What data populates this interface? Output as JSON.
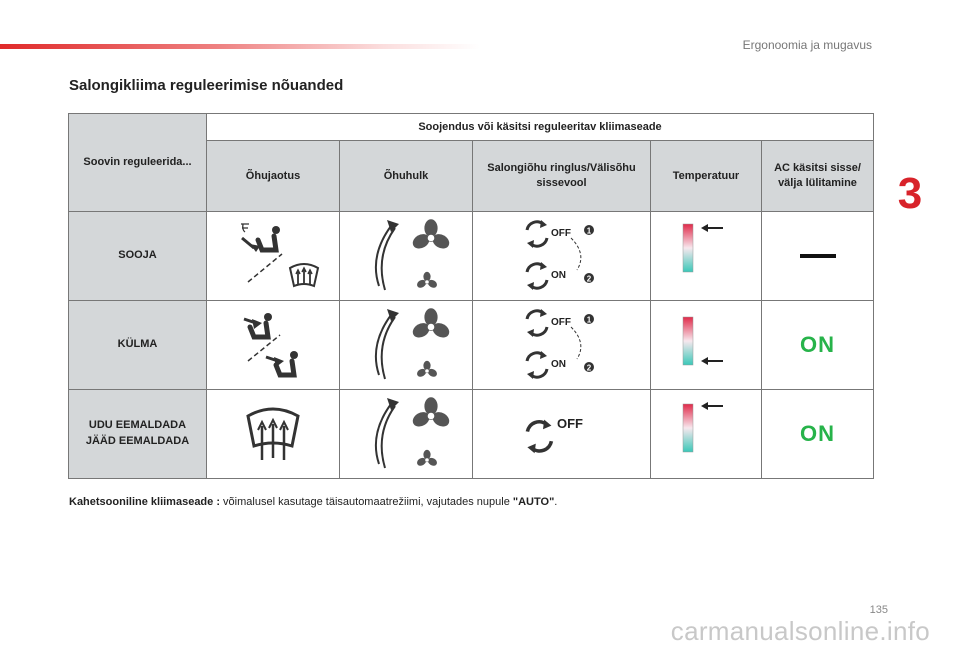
{
  "header": {
    "section": "Ergonoomia ja mugavus",
    "chapter": "3"
  },
  "title": "Salongikliima reguleerimise nõuanded",
  "table": {
    "col0_header": "Soovin reguleerida...",
    "group_header": "Soojendus või käsitsi reguleeritav kliimaseade",
    "columns": [
      "Õhujaotus",
      "Õhuhulk",
      "Salongiõhu ringlus/Välisõhu sissevool",
      "Temperatuur",
      "AC käsitsi sisse/ välja lülitamine"
    ],
    "rows": [
      {
        "label": "SOOJA",
        "recirc_top": "OFF",
        "recirc_bottom": "ON",
        "step1": "1",
        "step2": "2",
        "ac": "—"
      },
      {
        "label": "KÜLMA",
        "recirc_top": "OFF",
        "recirc_bottom": "ON",
        "step1": "1",
        "step2": "2",
        "ac": "ON"
      },
      {
        "label": "UDU EEMALDADA JÄÄD EEMALDADA",
        "recirc": "OFF",
        "ac": "ON"
      }
    ]
  },
  "footnote": {
    "bold": "Kahetsooniline kliimaseade :",
    "text": " võimalusel kasutage täisautomaatrežiimi, vajutades nupule ",
    "button": "\"AUTO\"",
    "end": "."
  },
  "page_number": "135",
  "watermark": "carmanualsonline.info",
  "colors": {
    "accent": "#d8232a",
    "ac_on": "#27b34a",
    "header_bg": "#d4d7d9"
  },
  "icons": [
    "defrost-icon",
    "seat-airflow-icon",
    "fan-icon",
    "curved-arrow-icon",
    "recirculation-icon",
    "temperature-bar-icon",
    "arrow-left-icon"
  ]
}
